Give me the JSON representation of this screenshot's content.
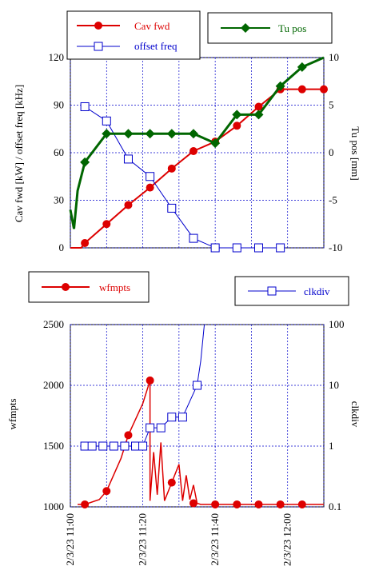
{
  "chart_data": [
    {
      "type": "line",
      "panel": "top",
      "ylabel_left": "Cav fwd [kW]  /  offset freq [kHz]",
      "ylabel_right": "Tu pos [mm]",
      "y_left_ticks": [
        0,
        30,
        60,
        90,
        120
      ],
      "y_right_ticks": [
        -10,
        -5,
        0,
        5,
        10
      ],
      "y_left_range": [
        0,
        120
      ],
      "y_right_range": [
        -10,
        10
      ],
      "x_range": [
        "2/3/23 11:00",
        "2/3/23 12:10"
      ],
      "grid": true,
      "series": [
        {
          "name": "Cav fwd",
          "axis": "left",
          "color": "#dd0000",
          "marker": "filled-circle",
          "x": [
            "11:00",
            "11:05",
            "11:10",
            "11:15",
            "11:20",
            "11:25",
            "11:30",
            "11:35",
            "11:40",
            "11:45",
            "11:50",
            "11:55",
            "12:00",
            "12:05",
            "12:10"
          ],
          "values": [
            0,
            1,
            3,
            8,
            14,
            20,
            26,
            32,
            38,
            44,
            50,
            55,
            61,
            66,
            66
          ],
          "marker_x": [
            "11:04",
            "11:10",
            "11:16",
            "11:22",
            "11:28",
            "11:34",
            "11:40",
            "11:46",
            "11:52",
            "11:58",
            "12:04",
            "12:10"
          ],
          "marker_values": [
            3,
            15,
            27,
            38,
            50,
            61,
            67,
            77,
            89,
            100,
            100,
            100
          ]
        },
        {
          "name": "offset freq",
          "axis": "left",
          "color": "#0000cc",
          "marker": "open-square",
          "marker_x": [
            "11:04",
            "11:10",
            "11:16",
            "11:22",
            "11:28",
            "11:34",
            "11:40",
            "11:46",
            "11:52",
            "11:58"
          ],
          "marker_values": [
            89,
            80,
            56,
            45,
            25,
            6,
            0,
            0,
            0,
            0
          ]
        },
        {
          "name": "Tu pos",
          "axis": "right",
          "color": "#006600",
          "marker": "filled-diamond",
          "marker_x": [
            "11:04",
            "11:10",
            "11:16",
            "11:22",
            "11:28",
            "11:34",
            "11:40",
            "11:46",
            "11:52",
            "11:58",
            "12:04"
          ],
          "marker_values": [
            -1,
            2,
            2,
            2,
            2,
            2,
            1,
            4,
            4,
            7,
            9
          ]
        }
      ]
    },
    {
      "type": "line",
      "panel": "bottom",
      "ylabel_left": "wfmpts",
      "ylabel_right": "clkdiv",
      "y_left_ticks": [
        1000,
        1500,
        2000,
        2500
      ],
      "y_right_ticks": [
        "0.1",
        "1",
        "10",
        "100"
      ],
      "y_left_range": [
        1000,
        2500
      ],
      "y_right_range": [
        0.1,
        100
      ],
      "y_right_scale": "log",
      "x_ticks": [
        "2/3/23 11:00",
        "2/3/23 11:20",
        "2/3/23 11:40",
        "2/3/23 12:00"
      ],
      "grid": true,
      "series": [
        {
          "name": "wfmpts",
          "axis": "left",
          "color": "#dd0000",
          "marker": "filled-circle",
          "marker_x": [
            "11:04",
            "11:10",
            "11:16",
            "11:22",
            "11:28",
            "11:34",
            "11:40",
            "11:46",
            "11:52",
            "11:58",
            "12:04"
          ],
          "marker_values": [
            1020,
            1130,
            1590,
            2040,
            1200,
            1030,
            1020,
            1020,
            1020,
            1020,
            1020
          ]
        },
        {
          "name": "clkdiv",
          "axis": "right",
          "color": "#0000cc",
          "marker": "open-square",
          "marker_x": [
            "11:04",
            "11:06",
            "11:09",
            "11:12",
            "11:15",
            "11:18",
            "11:20",
            "11:22",
            "11:25",
            "11:28",
            "11:31",
            "11:35"
          ],
          "marker_values": [
            1,
            1,
            1,
            1,
            1,
            1,
            1,
            2,
            2,
            3,
            3,
            10
          ]
        }
      ]
    }
  ]
}
